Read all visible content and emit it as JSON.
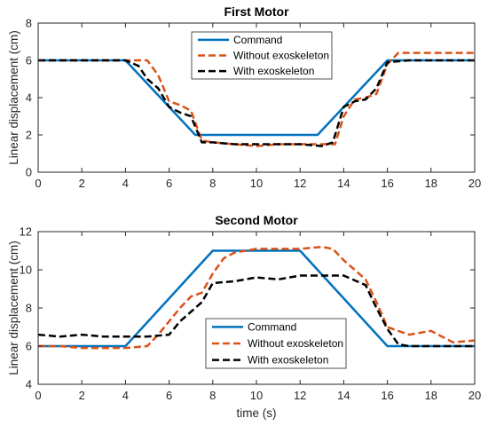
{
  "chart_data": [
    {
      "type": "line",
      "title": "First Motor",
      "xlabel": "",
      "ylabel": "Linear displacement (cm)",
      "xlim": [
        0,
        20
      ],
      "ylim": [
        0,
        8
      ],
      "xticks": [
        0,
        2,
        4,
        6,
        8,
        10,
        12,
        14,
        16,
        18,
        20
      ],
      "yticks": [
        0,
        2,
        4,
        6,
        8
      ],
      "grid": false,
      "legend_position": "top-center",
      "series": [
        {
          "name": "Command",
          "color": "#0072BD",
          "style": "solid",
          "x": [
            0,
            4,
            7.2,
            12.8,
            16,
            20
          ],
          "y": [
            6,
            6,
            2,
            2,
            6,
            6
          ]
        },
        {
          "name": "Without exoskeleton",
          "color": "#D95319",
          "style": "dashed",
          "x": [
            0,
            1,
            2,
            3,
            4,
            5,
            5.5,
            6,
            6.5,
            7,
            7.5,
            8,
            9,
            10,
            11,
            12,
            13,
            13.6,
            14,
            14.5,
            15,
            15.5,
            16,
            16.5,
            17,
            18,
            19,
            20
          ],
          "y": [
            6,
            6,
            6,
            6,
            6,
            6,
            5.2,
            3.8,
            3.6,
            3.3,
            1.7,
            1.6,
            1.5,
            1.4,
            1.5,
            1.5,
            1.5,
            1.5,
            3.0,
            3.9,
            4.0,
            4.2,
            5.8,
            6.4,
            6.4,
            6.4,
            6.4,
            6.4
          ]
        },
        {
          "name": "With exoskeleton",
          "color": "#000000",
          "style": "dashed",
          "x": [
            0,
            1,
            2,
            3,
            4,
            4.6,
            5,
            5.5,
            6,
            6.5,
            7,
            7.5,
            8,
            9,
            10,
            11,
            12,
            13,
            13.5,
            14,
            14.5,
            15,
            15.5,
            16,
            17,
            18,
            19,
            20
          ],
          "y": [
            6,
            6,
            6,
            6,
            6,
            5.7,
            5.0,
            4.5,
            3.5,
            3.2,
            3.0,
            1.6,
            1.6,
            1.5,
            1.5,
            1.5,
            1.5,
            1.4,
            1.6,
            3.5,
            3.8,
            3.9,
            4.5,
            5.9,
            6.0,
            6.0,
            6.0,
            6.0
          ]
        }
      ]
    },
    {
      "type": "line",
      "title": "Second Motor",
      "xlabel": "time (s)",
      "ylabel": "Linear displacement (cm)",
      "xlim": [
        0,
        20
      ],
      "ylim": [
        4,
        12
      ],
      "xticks": [
        0,
        2,
        4,
        6,
        8,
        10,
        12,
        14,
        16,
        18,
        20
      ],
      "yticks": [
        4,
        6,
        8,
        10,
        12
      ],
      "grid": false,
      "legend_position": "bottom-center",
      "series": [
        {
          "name": "Command",
          "color": "#0072BD",
          "style": "solid",
          "x": [
            0,
            4,
            8,
            12,
            16,
            20
          ],
          "y": [
            6,
            6,
            11,
            11,
            6,
            6
          ]
        },
        {
          "name": "Without exoskeleton",
          "color": "#D95319",
          "style": "dashed",
          "x": [
            0,
            1,
            2,
            3,
            4,
            5,
            5.5,
            6,
            6.5,
            7,
            7.5,
            8,
            8.5,
            9,
            10,
            11,
            12,
            13,
            13.5,
            14,
            14.5,
            15,
            15.5,
            16,
            16.5,
            17,
            18,
            19,
            20
          ],
          "y": [
            6,
            6,
            5.9,
            5.9,
            5.9,
            6.0,
            6.6,
            7.3,
            8.0,
            8.6,
            8.8,
            9.8,
            10.6,
            10.9,
            11.1,
            11.1,
            11.1,
            11.2,
            11.1,
            10.5,
            10.0,
            9.5,
            8.3,
            7.0,
            6.8,
            6.6,
            6.8,
            6.2,
            6.3
          ]
        },
        {
          "name": "With exoskeleton",
          "color": "#000000",
          "style": "dashed",
          "x": [
            0,
            1,
            2,
            3,
            4,
            5,
            6,
            6.5,
            7,
            7.5,
            8,
            9,
            10,
            11,
            12,
            13,
            14,
            15,
            15.5,
            16,
            16.5,
            17,
            18,
            19,
            20
          ],
          "y": [
            6.6,
            6.5,
            6.6,
            6.5,
            6.5,
            6.5,
            6.6,
            7.3,
            7.8,
            8.3,
            9.3,
            9.4,
            9.6,
            9.5,
            9.7,
            9.7,
            9.7,
            9.2,
            8.0,
            6.9,
            6.1,
            6.0,
            6.0,
            6.0,
            6.0
          ]
        }
      ]
    }
  ]
}
